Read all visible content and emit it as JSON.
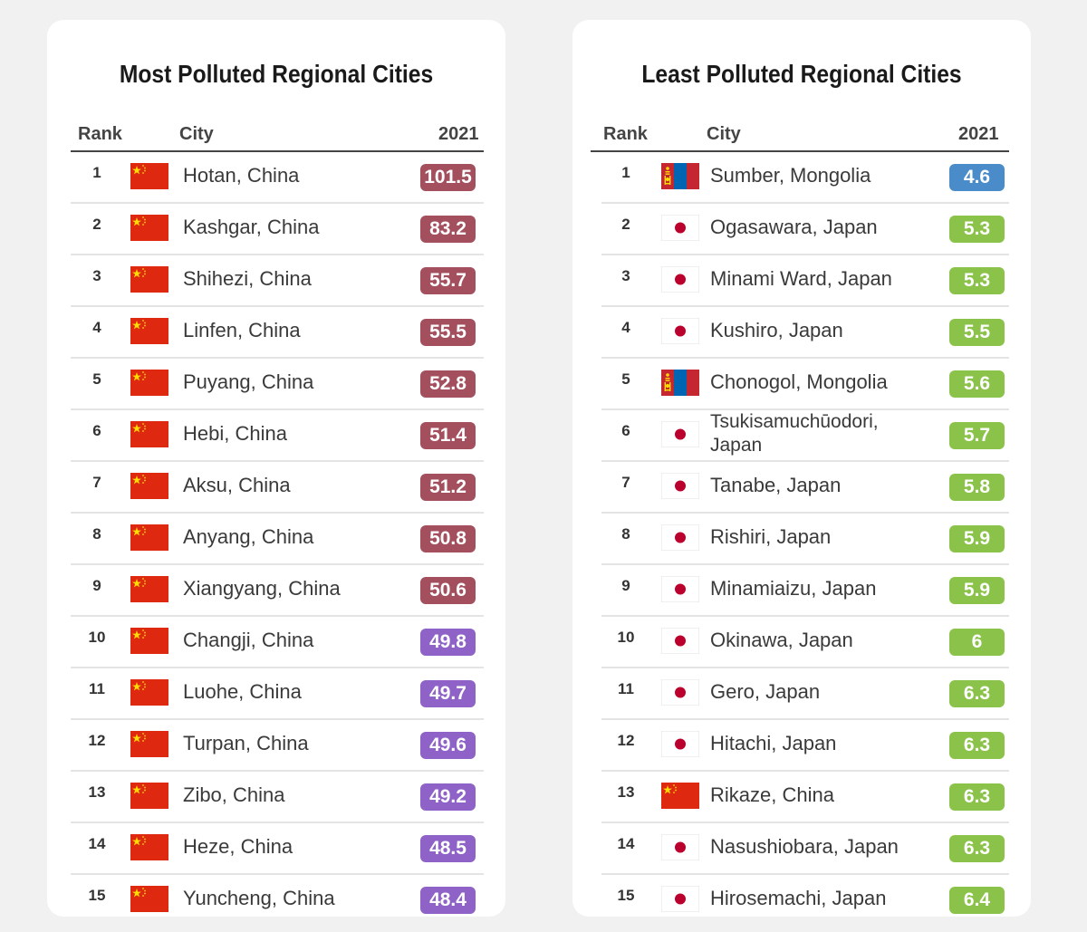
{
  "colors": {
    "maroon": "#a44f5d",
    "purple": "#8e62c7",
    "blue": "#4a8bc9",
    "green": "#8bc34a",
    "china_red": "#de2910",
    "china_yellow": "#ffde00",
    "mongolia_red": "#c4272f",
    "mongolia_blue": "#0066b3",
    "japan_red": "#bc002d"
  },
  "left": {
    "title": "Most Polluted Regional Cities",
    "headers": {
      "rank": "Rank",
      "city": "City",
      "year": "2021"
    },
    "rows": [
      {
        "rank": "1",
        "flag": "china-flag-icon",
        "city": "Hotan, China",
        "value": "101.5",
        "color": "maroon"
      },
      {
        "rank": "2",
        "flag": "china-flag-icon",
        "city": "Kashgar, China",
        "value": "83.2",
        "color": "maroon"
      },
      {
        "rank": "3",
        "flag": "china-flag-icon",
        "city": "Shihezi, China",
        "value": "55.7",
        "color": "maroon"
      },
      {
        "rank": "4",
        "flag": "china-flag-icon",
        "city": "Linfen, China",
        "value": "55.5",
        "color": "maroon"
      },
      {
        "rank": "5",
        "flag": "china-flag-icon",
        "city": "Puyang, China",
        "value": "52.8",
        "color": "maroon"
      },
      {
        "rank": "6",
        "flag": "china-flag-icon",
        "city": "Hebi, China",
        "value": "51.4",
        "color": "maroon"
      },
      {
        "rank": "7",
        "flag": "china-flag-icon",
        "city": "Aksu, China",
        "value": "51.2",
        "color": "maroon"
      },
      {
        "rank": "8",
        "flag": "china-flag-icon",
        "city": "Anyang, China",
        "value": "50.8",
        "color": "maroon"
      },
      {
        "rank": "9",
        "flag": "china-flag-icon",
        "city": "Xiangyang, China",
        "value": "50.6",
        "color": "maroon"
      },
      {
        "rank": "10",
        "flag": "china-flag-icon",
        "city": "Changji, China",
        "value": "49.8",
        "color": "purple"
      },
      {
        "rank": "11",
        "flag": "china-flag-icon",
        "city": "Luohe, China",
        "value": "49.7",
        "color": "purple"
      },
      {
        "rank": "12",
        "flag": "china-flag-icon",
        "city": "Turpan, China",
        "value": "49.6",
        "color": "purple"
      },
      {
        "rank": "13",
        "flag": "china-flag-icon",
        "city": "Zibo, China",
        "value": "49.2",
        "color": "purple"
      },
      {
        "rank": "14",
        "flag": "china-flag-icon",
        "city": "Heze, China",
        "value": "48.5",
        "color": "purple"
      },
      {
        "rank": "15",
        "flag": "china-flag-icon",
        "city": "Yuncheng, China",
        "value": "48.4",
        "color": "purple"
      }
    ]
  },
  "right": {
    "title": "Least Polluted Regional Cities",
    "headers": {
      "rank": "Rank",
      "city": "City",
      "year": "2021"
    },
    "rows": [
      {
        "rank": "1",
        "flag": "mongolia-flag-icon",
        "city": "Sumber, Mongolia",
        "value": "4.6",
        "color": "blue"
      },
      {
        "rank": "2",
        "flag": "japan-flag-icon",
        "city": "Ogasawara, Japan",
        "value": "5.3",
        "color": "green"
      },
      {
        "rank": "3",
        "flag": "japan-flag-icon",
        "city": "Minami Ward, Japan",
        "value": "5.3",
        "color": "green"
      },
      {
        "rank": "4",
        "flag": "japan-flag-icon",
        "city": "Kushiro, Japan",
        "value": "5.5",
        "color": "green"
      },
      {
        "rank": "5",
        "flag": "mongolia-flag-icon",
        "city": "Chonogol, Mongolia",
        "value": "5.6",
        "color": "green"
      },
      {
        "rank": "6",
        "flag": "japan-flag-icon",
        "city": "Tsukisamuchūodori, Japan",
        "value": "5.7",
        "color": "green"
      },
      {
        "rank": "7",
        "flag": "japan-flag-icon",
        "city": "Tanabe, Japan",
        "value": "5.8",
        "color": "green"
      },
      {
        "rank": "8",
        "flag": "japan-flag-icon",
        "city": "Rishiri, Japan",
        "value": "5.9",
        "color": "green"
      },
      {
        "rank": "9",
        "flag": "japan-flag-icon",
        "city": "Minamiaizu, Japan",
        "value": "5.9",
        "color": "green"
      },
      {
        "rank": "10",
        "flag": "japan-flag-icon",
        "city": "Okinawa, Japan",
        "value": "6",
        "color": "green"
      },
      {
        "rank": "11",
        "flag": "japan-flag-icon",
        "city": "Gero, Japan",
        "value": "6.3",
        "color": "green"
      },
      {
        "rank": "12",
        "flag": "japan-flag-icon",
        "city": "Hitachi, Japan",
        "value": "6.3",
        "color": "green"
      },
      {
        "rank": "13",
        "flag": "china-flag-icon",
        "city": "Rikaze, China",
        "value": "6.3",
        "color": "green"
      },
      {
        "rank": "14",
        "flag": "japan-flag-icon",
        "city": "Nasushiobara, Japan",
        "value": "6.3",
        "color": "green"
      },
      {
        "rank": "15",
        "flag": "japan-flag-icon",
        "city": "Hirosemachi, Japan",
        "value": "6.4",
        "color": "green"
      }
    ]
  }
}
